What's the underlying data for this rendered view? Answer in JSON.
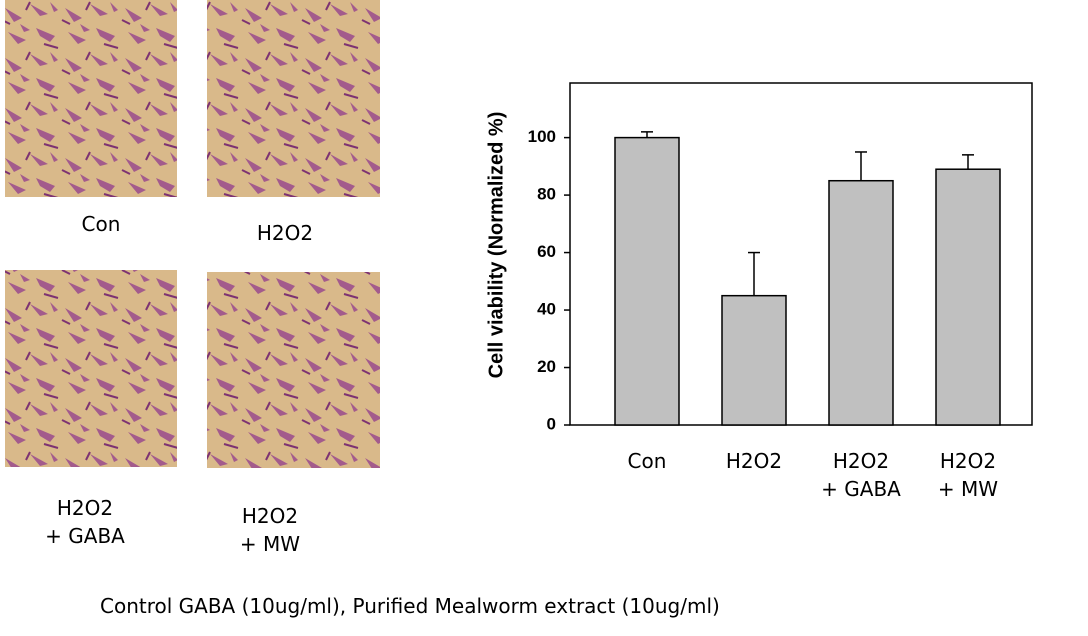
{
  "panels": [
    {
      "label": "Con"
    },
    {
      "label": "H2O2"
    },
    {
      "label": "H2O2\n+ GABA"
    },
    {
      "label": "H2O2\n+ MW"
    }
  ],
  "caption": "Control GABA (10ug/ml), Purified Mealworm extract (10ug/ml)",
  "chart_data": {
    "type": "bar",
    "ylabel": "Cell viability (Normalized %)",
    "categories": [
      "Con",
      "H2O2",
      "H2O2\n+ GABA",
      "H2O2\n+ MW"
    ],
    "values": [
      100,
      45,
      85,
      89
    ],
    "errors": [
      2,
      15,
      10,
      5
    ],
    "color": "#c0c0c0",
    "ylim": [
      0,
      119
    ],
    "yticks": [
      0,
      20,
      40,
      60,
      80,
      100
    ],
    "grid": false
  }
}
